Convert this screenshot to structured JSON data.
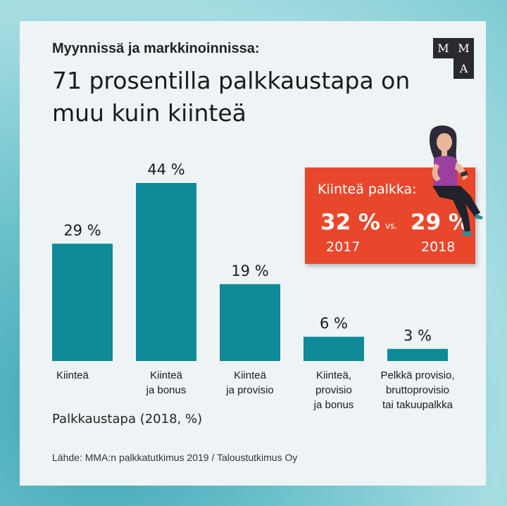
{
  "header": {
    "subtitle": "Myynnissä ja markkinoinnissa:",
    "title": "71 prosentilla palkkaustapa on muu kuin kiinteä",
    "logo_letters": [
      "M",
      "M",
      "A"
    ]
  },
  "callout": {
    "label": "Kiinteä palkka:",
    "value_2017": "32 %",
    "vs": "vs.",
    "value_2018": "29 %",
    "year_2017": "2017",
    "year_2018": "2018"
  },
  "footer": {
    "axis_title": "Palkkaustapa (2018, %)",
    "source": "Lähde: MMA:n palkkatutkimus 2019 / Taloustutkimus Oy"
  },
  "colors": {
    "bar": "#0e8a99",
    "callout": "#e9472c",
    "card": "#eef4f5"
  },
  "chart_data": {
    "type": "bar",
    "categories": [
      [
        "Kiinteä"
      ],
      [
        "Kiinteä",
        "ja bonus"
      ],
      [
        "Kiinteä",
        "ja provisio"
      ],
      [
        "Kiinteä,",
        "provisio",
        "ja bonus"
      ],
      [
        "Pelkkä provisio,",
        "bruttoprovisio",
        "tai takuupalkka"
      ]
    ],
    "values": [
      29,
      44,
      19,
      6,
      3
    ],
    "value_labels": [
      "29 %",
      "44 %",
      "19 %",
      "6 %",
      "3 %"
    ],
    "ylim": [
      0,
      44
    ],
    "grid": false,
    "legend": "none"
  }
}
